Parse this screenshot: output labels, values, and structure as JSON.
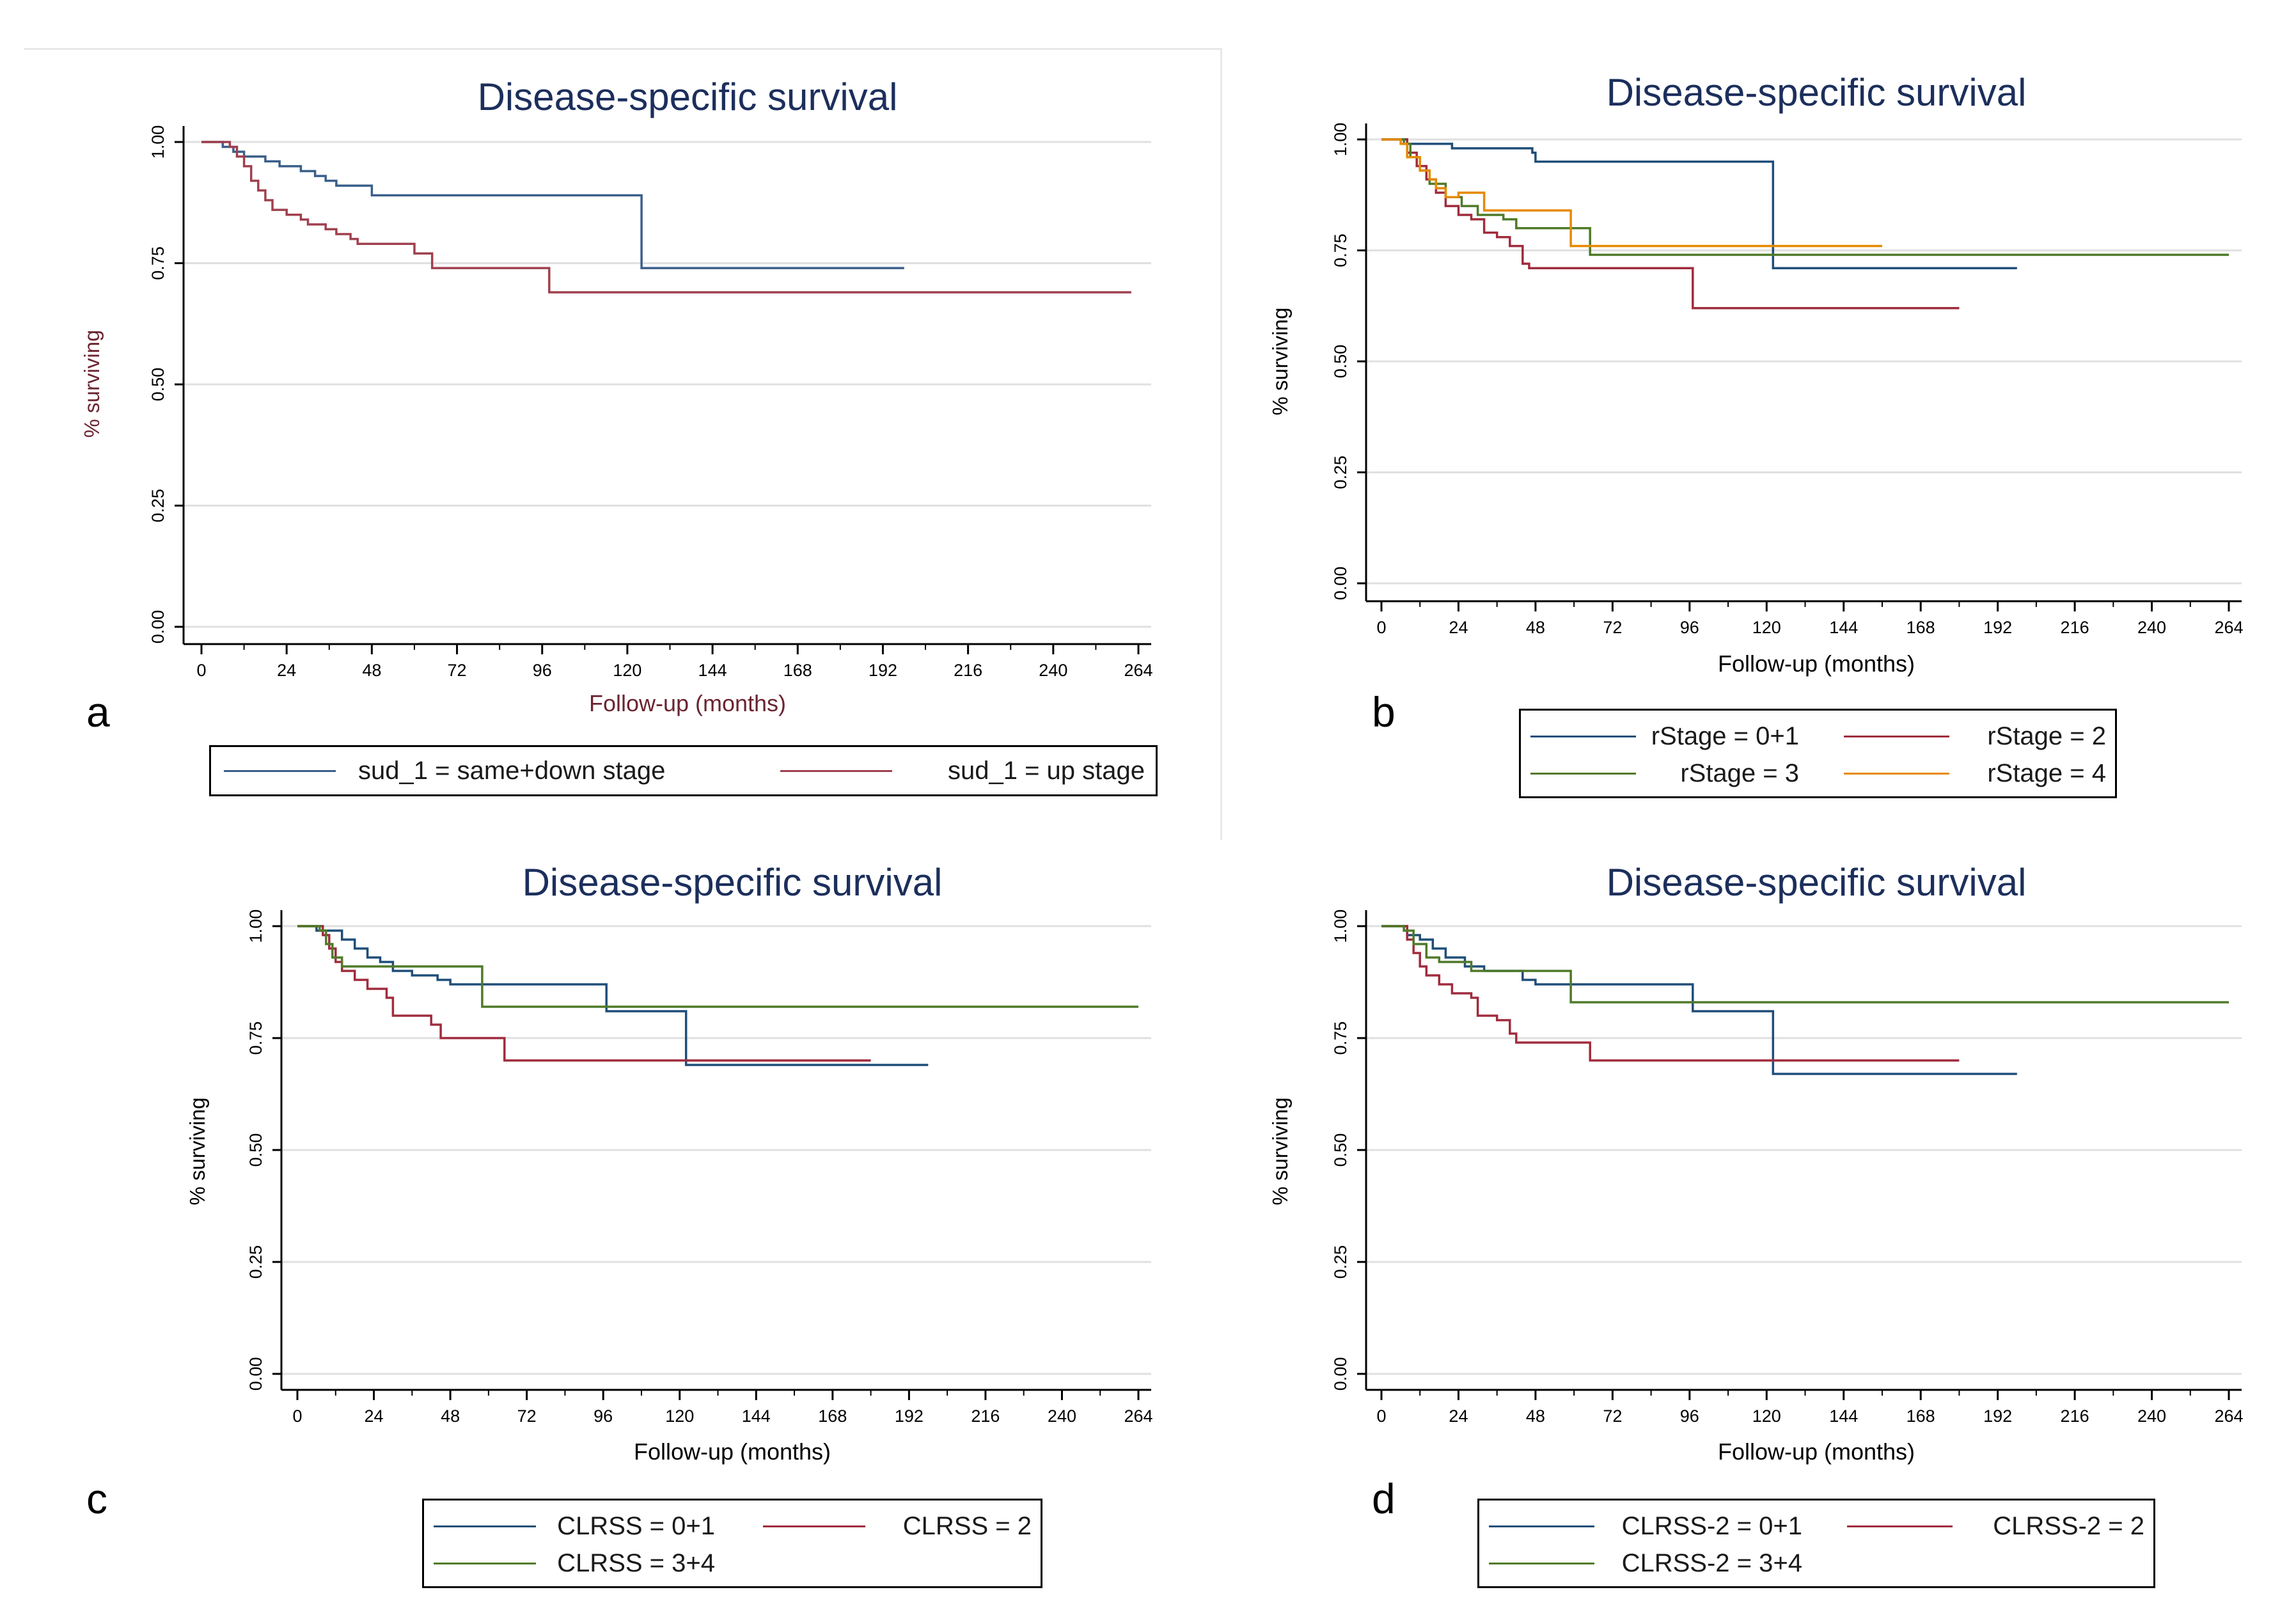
{
  "colors": {
    "navy": "#1f4e79",
    "maroon": "#a02c3d",
    "green": "#4f7a28",
    "orange": "#e68a00",
    "title": "#1c2f5c",
    "axis": "#000000",
    "grid": "#e0e0e0",
    "label_red": "#6b2430"
  },
  "chart_data": [
    {
      "id": "a",
      "type": "line",
      "letter": "a",
      "title": "Disease-specific survival",
      "xlabel": "Follow-up (months)",
      "ylabel": "% surviving",
      "xlim": [
        0,
        264
      ],
      "ylim": [
        0,
        1
      ],
      "xticks": [
        "0",
        "24",
        "48",
        "72",
        "96",
        "120",
        "144",
        "168",
        "192",
        "216",
        "240",
        "264"
      ],
      "yticks": [
        "0.00",
        "0.25",
        "0.50",
        "0.75",
        "1.00"
      ],
      "grid": true,
      "legend_position": "bottom",
      "series": [
        {
          "name": "sud_1 = same+down stage",
          "color": "#3a5f8a",
          "steps": [
            [
              0,
              1
            ],
            [
              6,
              0.99
            ],
            [
              9,
              0.98
            ],
            [
              12,
              0.97
            ],
            [
              18,
              0.96
            ],
            [
              22,
              0.95
            ],
            [
              28,
              0.94
            ],
            [
              32,
              0.93
            ],
            [
              35,
              0.92
            ],
            [
              38,
              0.91
            ],
            [
              48,
              0.89
            ],
            [
              124,
              0.89
            ],
            [
              124,
              0.74
            ],
            [
              198,
              0.74
            ]
          ]
        },
        {
          "name": "sud_1 = up stage",
          "color": "#a0404f",
          "steps": [
            [
              0,
              1
            ],
            [
              8,
              0.99
            ],
            [
              10,
              0.97
            ],
            [
              12,
              0.95
            ],
            [
              14,
              0.92
            ],
            [
              16,
              0.9
            ],
            [
              18,
              0.88
            ],
            [
              20,
              0.86
            ],
            [
              24,
              0.85
            ],
            [
              28,
              0.84
            ],
            [
              30,
              0.83
            ],
            [
              35,
              0.82
            ],
            [
              38,
              0.81
            ],
            [
              42,
              0.8
            ],
            [
              44,
              0.79
            ],
            [
              58,
              0.79
            ],
            [
              60,
              0.77
            ],
            [
              65,
              0.77
            ],
            [
              65,
              0.74
            ],
            [
              98,
              0.74
            ],
            [
              98,
              0.69
            ],
            [
              262,
              0.69
            ]
          ]
        }
      ]
    },
    {
      "id": "b",
      "type": "line",
      "letter": "b",
      "title": "Disease-specific survival",
      "xlabel": "Follow-up (months)",
      "ylabel": "% surviving",
      "xlim": [
        0,
        264
      ],
      "ylim": [
        0,
        1
      ],
      "xticks": [
        "0",
        "24",
        "48",
        "72",
        "96",
        "120",
        "144",
        "168",
        "192",
        "216",
        "240",
        "264"
      ],
      "yticks": [
        "0.00",
        "0.25",
        "0.50",
        "0.75",
        "1.00"
      ],
      "grid": true,
      "legend_position": "bottom",
      "series": [
        {
          "name": "rStage = 0+1",
          "color": "#1f4e79",
          "steps": [
            [
              0,
              1
            ],
            [
              8,
              0.99
            ],
            [
              22,
              0.98
            ],
            [
              47,
              0.97
            ],
            [
              48,
              0.95
            ],
            [
              122,
              0.95
            ],
            [
              122,
              0.71
            ],
            [
              198,
              0.71
            ]
          ]
        },
        {
          "name": "rStage = 2",
          "color": "#a02c3d",
          "steps": [
            [
              0,
              1
            ],
            [
              8,
              0.97
            ],
            [
              11,
              0.94
            ],
            [
              14,
              0.91
            ],
            [
              17,
              0.88
            ],
            [
              20,
              0.85
            ],
            [
              24,
              0.83
            ],
            [
              28,
              0.82
            ],
            [
              32,
              0.79
            ],
            [
              36,
              0.78
            ],
            [
              40,
              0.76
            ],
            [
              44,
              0.72
            ],
            [
              46,
              0.71
            ],
            [
              97,
              0.71
            ],
            [
              97,
              0.62
            ],
            [
              180,
              0.62
            ]
          ]
        },
        {
          "name": "rStage = 3",
          "color": "#4f7a28",
          "steps": [
            [
              0,
              1
            ],
            [
              7,
              0.99
            ],
            [
              9,
              0.96
            ],
            [
              12,
              0.93
            ],
            [
              15,
              0.9
            ],
            [
              20,
              0.87
            ],
            [
              25,
              0.85
            ],
            [
              30,
              0.83
            ],
            [
              38,
              0.82
            ],
            [
              42,
              0.8
            ],
            [
              64,
              0.8
            ],
            [
              65,
              0.77
            ],
            [
              65,
              0.74
            ],
            [
              264,
              0.74
            ]
          ]
        },
        {
          "name": "rStage = 4",
          "color": "#e68a00",
          "steps": [
            [
              0,
              1
            ],
            [
              6,
              0.99
            ],
            [
              8,
              0.96
            ],
            [
              12,
              0.93
            ],
            [
              15,
              0.91
            ],
            [
              17,
              0.89
            ],
            [
              20,
              0.87
            ],
            [
              24,
              0.88
            ],
            [
              30,
              0.88
            ],
            [
              32,
              0.84
            ],
            [
              59,
              0.84
            ],
            [
              59,
              0.76
            ],
            [
              156,
              0.76
            ]
          ]
        }
      ]
    },
    {
      "id": "c",
      "type": "line",
      "letter": "c",
      "title": "Disease-specific survival",
      "xlabel": "Follow-up (months)",
      "ylabel": "% surviving",
      "xlim": [
        0,
        264
      ],
      "ylim": [
        0,
        1
      ],
      "xticks": [
        "0",
        "24",
        "48",
        "72",
        "96",
        "120",
        "144",
        "168",
        "192",
        "216",
        "240",
        "264"
      ],
      "yticks": [
        "0.00",
        "0.25",
        "0.50",
        "0.75",
        "1.00"
      ],
      "grid": true,
      "legend_position": "bottom",
      "series": [
        {
          "name": "CLRSS = 0+1",
          "color": "#1f4e79",
          "steps": [
            [
              0,
              1
            ],
            [
              6,
              0.99
            ],
            [
              14,
              0.97
            ],
            [
              18,
              0.95
            ],
            [
              22,
              0.93
            ],
            [
              26,
              0.92
            ],
            [
              30,
              0.9
            ],
            [
              36,
              0.89
            ],
            [
              44,
              0.88
            ],
            [
              48,
              0.87
            ],
            [
              97,
              0.87
            ],
            [
              97,
              0.81
            ],
            [
              122,
              0.81
            ],
            [
              122,
              0.69
            ],
            [
              198,
              0.69
            ]
          ]
        },
        {
          "name": "CLRSS = 2",
          "color": "#a02c3d",
          "steps": [
            [
              0,
              1
            ],
            [
              8,
              0.98
            ],
            [
              10,
              0.95
            ],
            [
              12,
              0.92
            ],
            [
              14,
              0.9
            ],
            [
              18,
              0.88
            ],
            [
              22,
              0.86
            ],
            [
              28,
              0.84
            ],
            [
              30,
              0.8
            ],
            [
              38,
              0.8
            ],
            [
              42,
              0.78
            ],
            [
              45,
              0.75
            ],
            [
              64,
              0.75
            ],
            [
              65,
              0.7
            ],
            [
              180,
              0.7
            ]
          ]
        },
        {
          "name": "CLRSS = 3+4",
          "color": "#4f7a28",
          "steps": [
            [
              0,
              1
            ],
            [
              7,
              0.99
            ],
            [
              9,
              0.96
            ],
            [
              11,
              0.93
            ],
            [
              14,
              0.91
            ],
            [
              58,
              0.91
            ],
            [
              58,
              0.82
            ],
            [
              264,
              0.82
            ]
          ]
        }
      ]
    },
    {
      "id": "d",
      "type": "line",
      "letter": "d",
      "title": "Disease-specific survival",
      "xlabel": "Follow-up (months)",
      "ylabel": "% surviving",
      "xlim": [
        0,
        264
      ],
      "ylim": [
        0,
        1
      ],
      "xticks": [
        "0",
        "24",
        "48",
        "72",
        "96",
        "120",
        "144",
        "168",
        "192",
        "216",
        "240",
        "264"
      ],
      "yticks": [
        "0.00",
        "0.25",
        "0.50",
        "0.75",
        "1.00"
      ],
      "grid": true,
      "legend_position": "bottom",
      "series": [
        {
          "name": "CLRSS-2 = 0+1",
          "color": "#1f4e79",
          "steps": [
            [
              0,
              1
            ],
            [
              8,
              0.98
            ],
            [
              12,
              0.97
            ],
            [
              16,
              0.95
            ],
            [
              20,
              0.93
            ],
            [
              26,
              0.91
            ],
            [
              32,
              0.9
            ],
            [
              44,
              0.88
            ],
            [
              48,
              0.87
            ],
            [
              97,
              0.87
            ],
            [
              97,
              0.81
            ],
            [
              122,
              0.81
            ],
            [
              122,
              0.67
            ],
            [
              198,
              0.67
            ]
          ]
        },
        {
          "name": "CLRSS-2 = 2",
          "color": "#a02c3d",
          "steps": [
            [
              0,
              1
            ],
            [
              8,
              0.97
            ],
            [
              10,
              0.94
            ],
            [
              12,
              0.91
            ],
            [
              14,
              0.89
            ],
            [
              18,
              0.87
            ],
            [
              22,
              0.85
            ],
            [
              28,
              0.84
            ],
            [
              30,
              0.8
            ],
            [
              36,
              0.79
            ],
            [
              40,
              0.76
            ],
            [
              42,
              0.74
            ],
            [
              64,
              0.74
            ],
            [
              65,
              0.7
            ],
            [
              180,
              0.7
            ]
          ]
        },
        {
          "name": "CLRSS-2 = 3+4",
          "color": "#4f7a28",
          "steps": [
            [
              0,
              1
            ],
            [
              7,
              0.99
            ],
            [
              10,
              0.96
            ],
            [
              14,
              0.93
            ],
            [
              18,
              0.92
            ],
            [
              28,
              0.9
            ],
            [
              58,
              0.9
            ],
            [
              59,
              0.83
            ],
            [
              264,
              0.83
            ]
          ]
        }
      ]
    }
  ]
}
